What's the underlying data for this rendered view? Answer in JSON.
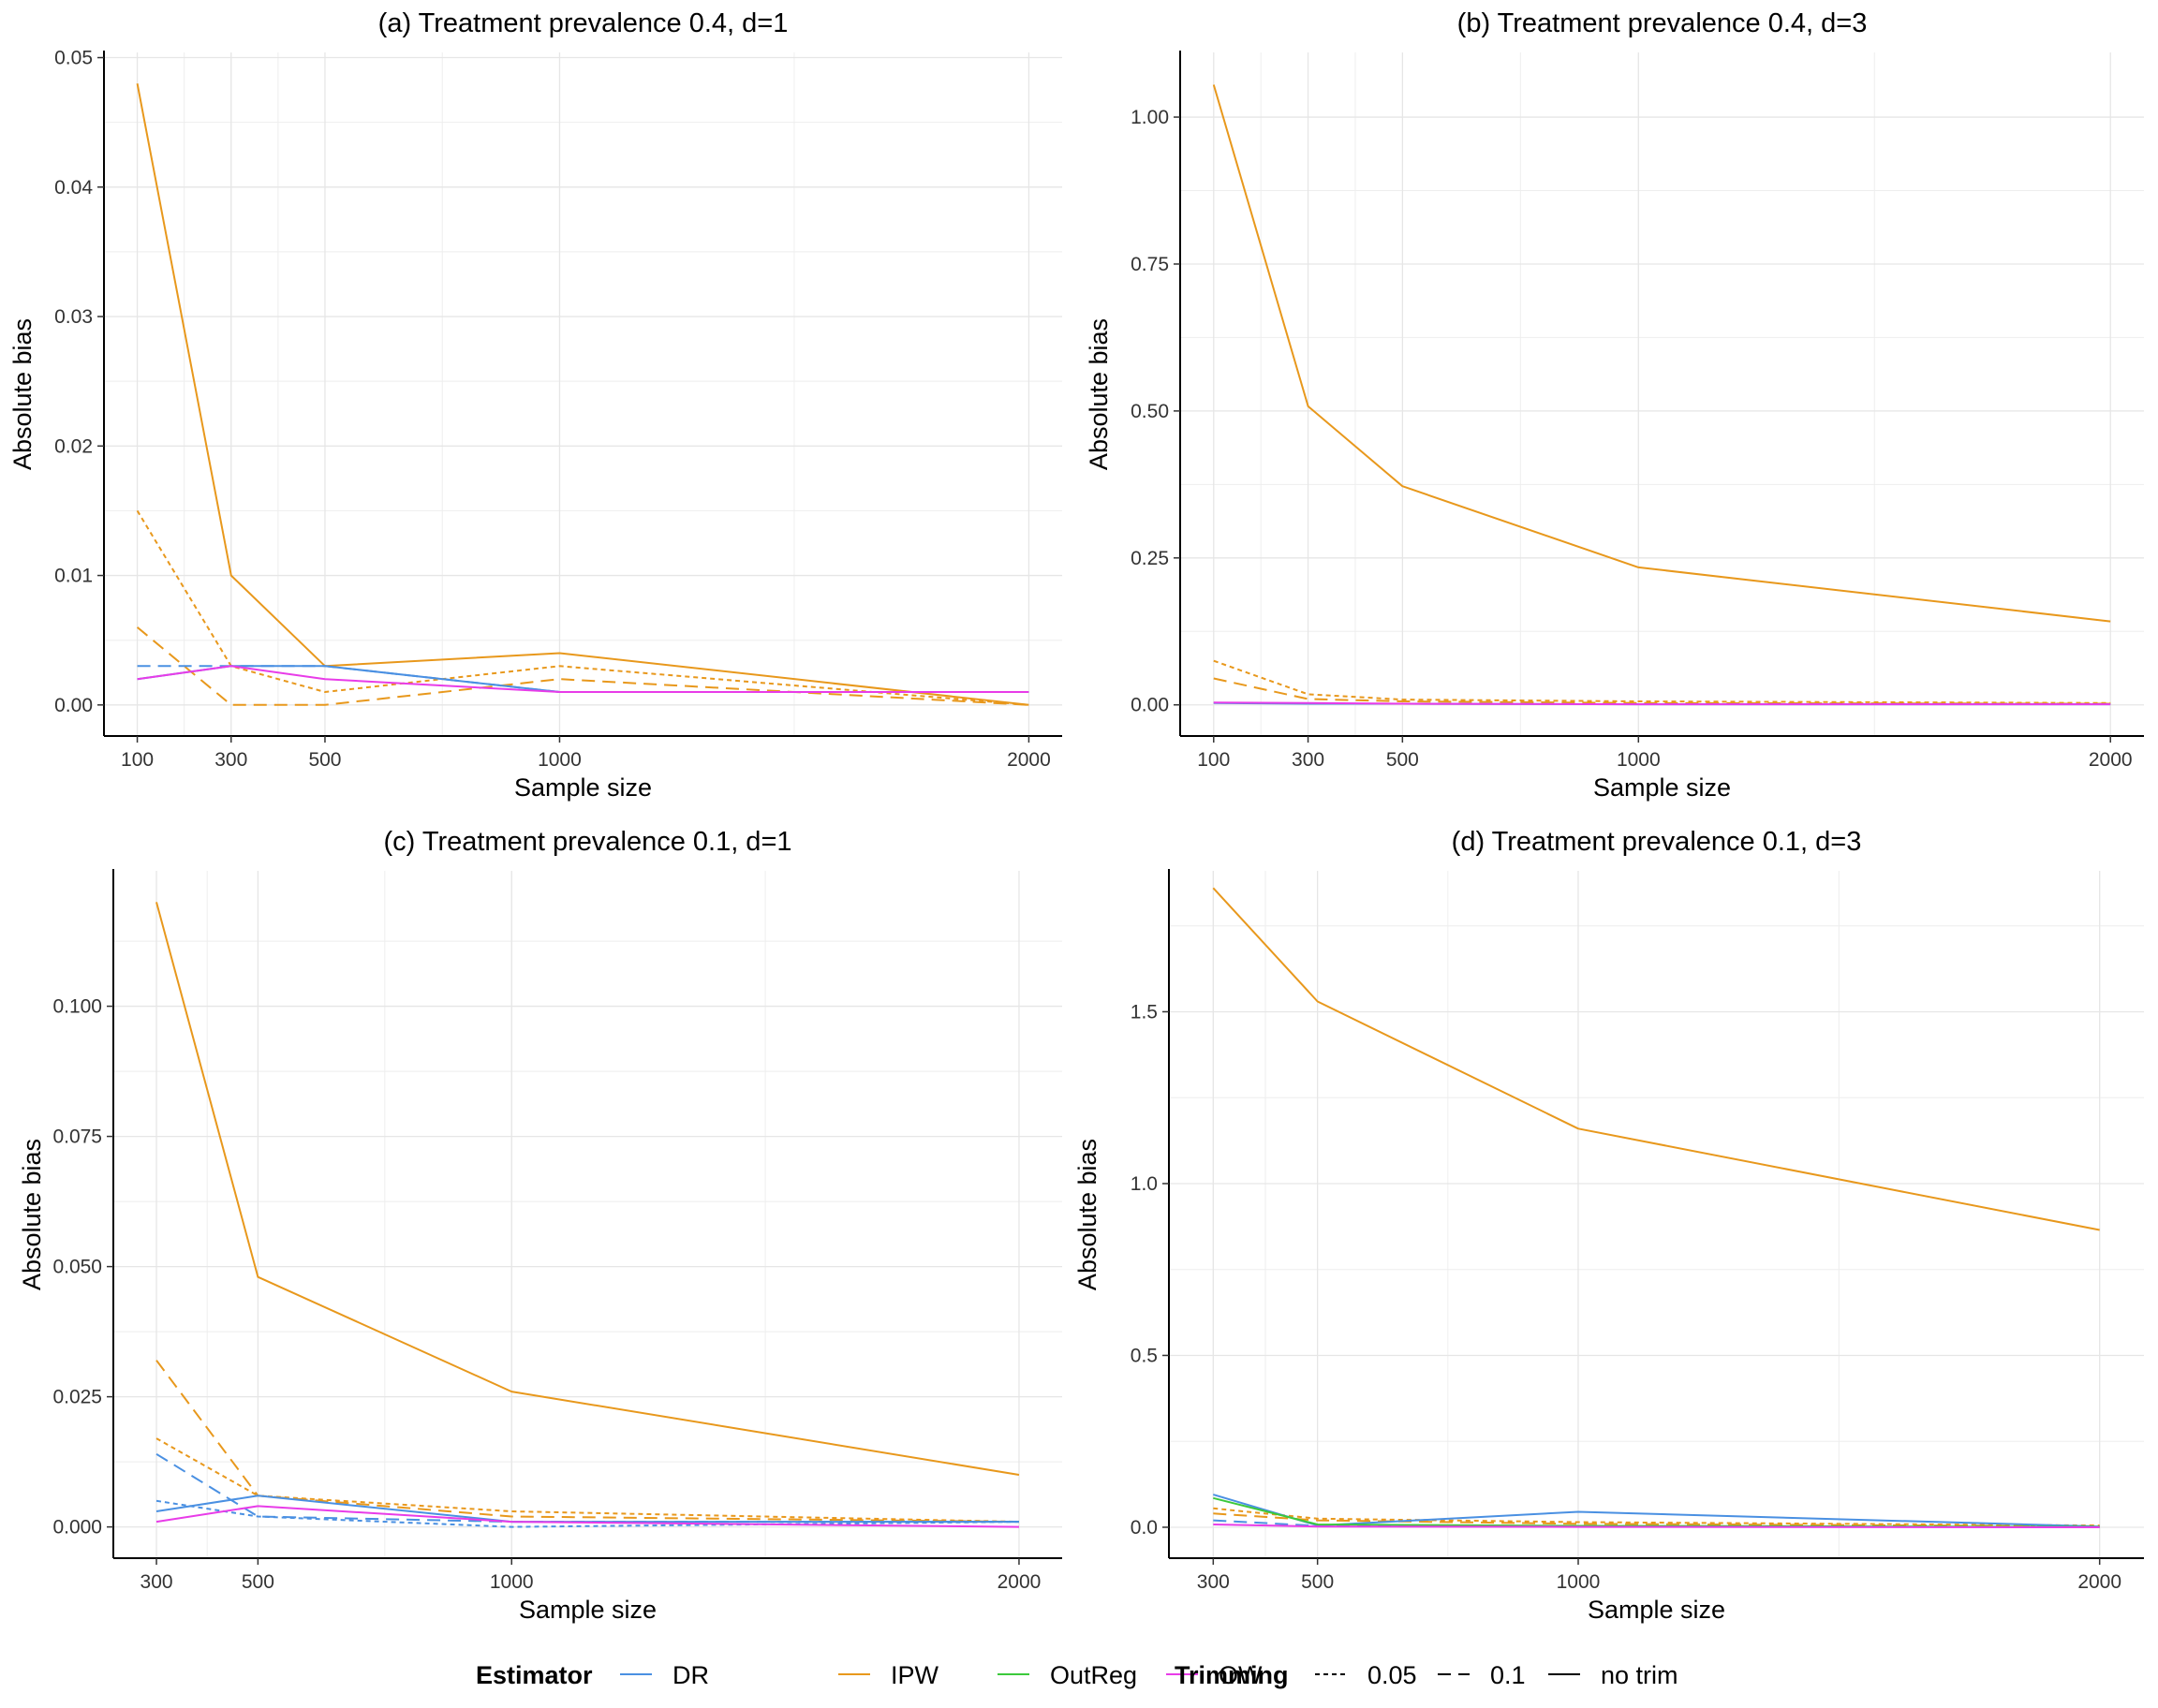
{
  "legend": {
    "estimator_title": "Estimator",
    "estimators": [
      {
        "name": "DR",
        "color": "#4a90e2"
      },
      {
        "name": "IPW",
        "color": "#e8981c"
      },
      {
        "name": "OutReg",
        "color": "#3cc93c"
      },
      {
        "name": "OW",
        "color": "#e83ce8"
      }
    ],
    "trimming_title": "Trimming",
    "trimmings": [
      {
        "name": "0.05",
        "dash": "dotted"
      },
      {
        "name": "0.1",
        "dash": "dashed"
      },
      {
        "name": "no trim",
        "dash": "solid"
      }
    ]
  },
  "chart_data": [
    {
      "type": "line",
      "title": "(a) Treatment prevalence 0.4, d=1",
      "xlabel": "Sample size",
      "ylabel": "Absolute bias",
      "x_ticks": [
        100,
        300,
        500,
        1000,
        2000
      ],
      "y_ticks": [
        "0.00",
        "0.01",
        "0.02",
        "0.03",
        "0.04",
        "0.05"
      ],
      "xlim": [
        29,
        2071
      ],
      "ylim": [
        -0.0024,
        0.0504
      ],
      "grid": true,
      "series": [
        {
          "estimator": "IPW",
          "trim": "no trim",
          "x": [
            100,
            300,
            500,
            1000,
            2000
          ],
          "y": [
            0.048,
            0.01,
            0.003,
            0.004,
            0.0
          ]
        },
        {
          "estimator": "IPW",
          "trim": "0.05",
          "x": [
            100,
            300,
            500,
            1000,
            2000
          ],
          "y": [
            0.015,
            0.003,
            0.001,
            0.003,
            0.0
          ]
        },
        {
          "estimator": "IPW",
          "trim": "0.1",
          "x": [
            100,
            300,
            500,
            1000,
            2000
          ],
          "y": [
            0.006,
            0.0,
            0.0,
            0.002,
            0.0
          ]
        },
        {
          "estimator": "DR",
          "trim": "0.1",
          "x": [
            100,
            300,
            500,
            1000,
            2000
          ],
          "y": [
            0.003,
            0.003,
            0.003,
            0.001,
            0.001
          ]
        },
        {
          "estimator": "DR",
          "trim": "no trim",
          "x": [
            100,
            300,
            500,
            1000,
            2000
          ],
          "y": [
            0.002,
            0.003,
            0.003,
            0.001,
            0.001
          ]
        },
        {
          "estimator": "OW",
          "trim": "no trim",
          "x": [
            100,
            300,
            500,
            1000,
            2000
          ],
          "y": [
            0.002,
            0.003,
            0.002,
            0.001,
            0.001
          ]
        }
      ]
    },
    {
      "type": "line",
      "title": "(b) Treatment prevalence 0.4, d=3",
      "xlabel": "Sample size",
      "ylabel": "Absolute bias",
      "x_ticks": [
        100,
        300,
        500,
        1000,
        2000
      ],
      "y_ticks": [
        "0.00",
        "0.25",
        "0.50",
        "0.75",
        "1.00"
      ],
      "xlim": [
        29,
        2071
      ],
      "ylim": [
        -0.053,
        1.11
      ],
      "grid": true,
      "series": [
        {
          "estimator": "IPW",
          "trim": "no trim",
          "x": [
            100,
            300,
            500,
            1000,
            2000
          ],
          "y": [
            1.055,
            0.508,
            0.372,
            0.234,
            0.142
          ]
        },
        {
          "estimator": "IPW",
          "trim": "0.05",
          "x": [
            100,
            300,
            500,
            1000,
            2000
          ],
          "y": [
            0.075,
            0.018,
            0.009,
            0.006,
            0.003
          ]
        },
        {
          "estimator": "IPW",
          "trim": "0.1",
          "x": [
            100,
            300,
            500,
            1000,
            2000
          ],
          "y": [
            0.045,
            0.01,
            0.006,
            0.003,
            0.002
          ]
        },
        {
          "estimator": "DR",
          "trim": "no trim",
          "x": [
            100,
            300,
            500,
            1000,
            2000
          ],
          "y": [
            0.003,
            0.002,
            0.002,
            0.001,
            0.001
          ]
        },
        {
          "estimator": "OW",
          "trim": "no trim",
          "x": [
            100,
            300,
            500,
            1000,
            2000
          ],
          "y": [
            0.004,
            0.003,
            0.002,
            0.001,
            0.001
          ]
        }
      ]
    },
    {
      "type": "line",
      "title": "(c) Treatment prevalence 0.1, d=1",
      "xlabel": "Sample size",
      "ylabel": "Absolute bias",
      "x_ticks": [
        300,
        500,
        1000,
        2000
      ],
      "y_ticks": [
        "0.000",
        "0.025",
        "0.050",
        "0.075",
        "0.100"
      ],
      "xlim": [
        215,
        2085
      ],
      "ylim": [
        -0.006,
        0.126
      ],
      "grid": true,
      "series": [
        {
          "estimator": "IPW",
          "trim": "no trim",
          "x": [
            300,
            500,
            1000,
            2000
          ],
          "y": [
            0.12,
            0.048,
            0.026,
            0.01
          ]
        },
        {
          "estimator": "IPW",
          "trim": "0.1",
          "x": [
            300,
            500,
            1000,
            2000
          ],
          "y": [
            0.032,
            0.006,
            0.002,
            0.001
          ]
        },
        {
          "estimator": "IPW",
          "trim": "0.05",
          "x": [
            300,
            500,
            1000,
            2000
          ],
          "y": [
            0.017,
            0.006,
            0.003,
            0.001
          ]
        },
        {
          "estimator": "DR",
          "trim": "0.1",
          "x": [
            300,
            500,
            1000,
            2000
          ],
          "y": [
            0.014,
            0.002,
            0.001,
            0.001
          ]
        },
        {
          "estimator": "DR",
          "trim": "0.05",
          "x": [
            300,
            500,
            1000,
            2000
          ],
          "y": [
            0.005,
            0.002,
            0.0,
            0.001
          ]
        },
        {
          "estimator": "DR",
          "trim": "no trim",
          "x": [
            300,
            500,
            1000,
            2000
          ],
          "y": [
            0.003,
            0.006,
            0.001,
            0.001
          ]
        },
        {
          "estimator": "OW",
          "trim": "no trim",
          "x": [
            300,
            500,
            1000,
            2000
          ],
          "y": [
            0.001,
            0.004,
            0.001,
            0.0
          ]
        }
      ]
    },
    {
      "type": "line",
      "title": "(d) Treatment prevalence 0.1, d=3",
      "xlabel": "Sample size",
      "ylabel": "Absolute bias",
      "x_ticks": [
        300,
        500,
        1000,
        2000
      ],
      "y_ticks": [
        "0.0",
        "0.5",
        "1.0",
        "1.5"
      ],
      "xlim": [
        215,
        2085
      ],
      "ylim": [
        -0.09,
        1.91
      ],
      "grid": true,
      "series": [
        {
          "estimator": "IPW",
          "trim": "no trim",
          "x": [
            300,
            500,
            1000,
            2000
          ],
          "y": [
            1.86,
            1.53,
            1.16,
            0.865
          ]
        },
        {
          "estimator": "IPW",
          "trim": "0.05",
          "x": [
            300,
            500,
            1000,
            2000
          ],
          "y": [
            0.055,
            0.025,
            0.015,
            0.005
          ]
        },
        {
          "estimator": "IPW",
          "trim": "0.1",
          "x": [
            300,
            500,
            1000,
            2000
          ],
          "y": [
            0.04,
            0.02,
            0.01,
            0.003
          ]
        },
        {
          "estimator": "DR",
          "trim": "no trim",
          "x": [
            300,
            500,
            1000,
            2000
          ],
          "y": [
            0.095,
            0.005,
            0.045,
            0.002
          ]
        },
        {
          "estimator": "DR",
          "trim": "0.1",
          "x": [
            300,
            500,
            1000,
            2000
          ],
          "y": [
            0.02,
            0.004,
            0.003,
            0.001
          ]
        },
        {
          "estimator": "OutReg",
          "trim": "no trim",
          "x": [
            300,
            500,
            1000,
            2000
          ],
          "y": [
            0.085,
            0.008,
            0.004,
            0.001
          ]
        },
        {
          "estimator": "OW",
          "trim": "no trim",
          "x": [
            300,
            500,
            1000,
            2000
          ],
          "y": [
            0.008,
            0.002,
            0.001,
            0.0
          ]
        }
      ]
    }
  ]
}
